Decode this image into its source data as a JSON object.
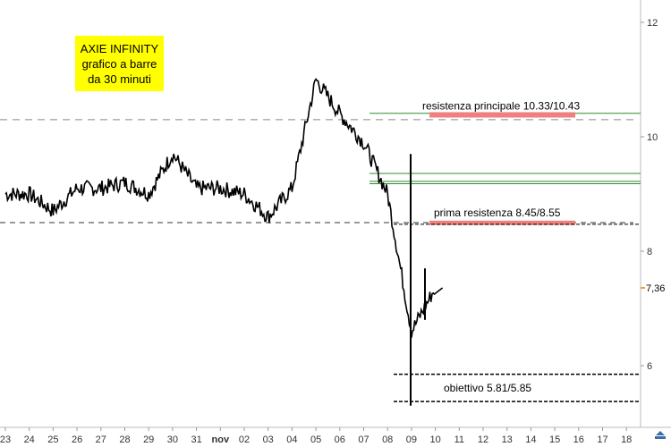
{
  "title_box": {
    "line1": "AXIE INFINITY",
    "line2": "grafico a barre",
    "line3": "da 30 minuti",
    "color": "#ffff00"
  },
  "chart_data": {
    "type": "line",
    "x_tick_labels": [
      "23",
      "24",
      "25",
      "26",
      "27",
      "28",
      "29",
      "30",
      "31",
      "nov",
      "02",
      "03",
      "04",
      "05",
      "06",
      "07",
      "08",
      "09",
      "10",
      "11",
      "12",
      "13",
      "14",
      "15",
      "16",
      "17",
      "18"
    ],
    "y_ticks": [
      6,
      8,
      10,
      12
    ],
    "ylim": [
      5.2,
      12.3
    ],
    "y_scale": "linear",
    "grid": false,
    "last_price_label": "7,36",
    "last_price": 7.36,
    "series": [
      {
        "x": [
          "23",
          "24",
          "25",
          "26",
          "27",
          "28",
          "29",
          "30",
          "31",
          "nov",
          "02",
          "03",
          "04",
          "05",
          "06",
          "07",
          "08",
          "09",
          "10"
        ],
        "values": [
          9.0,
          9.0,
          8.7,
          9.1,
          9.1,
          9.2,
          9.0,
          9.7,
          9.1,
          9.1,
          9.0,
          8.6,
          9.1,
          11.0,
          10.4,
          9.9,
          9.0,
          6.6,
          7.36
        ]
      }
    ],
    "levels": [
      {
        "label": "resistenza principale 10.33/10.43",
        "low": 10.33,
        "high": 10.43
      },
      {
        "label": "prima resistenza 8.45/8.55",
        "low": 8.45,
        "high": 8.55
      },
      {
        "label": "obiettivo 5.81/5.85",
        "low": 5.81,
        "high": 5.85
      }
    ],
    "colors": {
      "price": "#000000",
      "resistance_band": "#f08080",
      "green_lines": "#2e8b2e",
      "axis_text": "#333333",
      "dashed": "#888888",
      "price_marker": "#f0a030"
    }
  }
}
